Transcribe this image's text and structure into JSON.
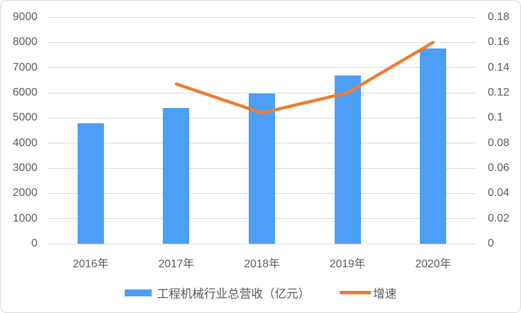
{
  "chart_data": {
    "type": "combo",
    "title": "",
    "categories": [
      "2016年",
      "2017年",
      "2018年",
      "2019年",
      "2020年"
    ],
    "series": [
      {
        "name": "工程机械行业总营收（亿元）",
        "type": "bar",
        "axis": "left",
        "color": "#4D9EF7",
        "values": [
          4795,
          5403,
          5966,
          6681,
          7751
        ]
      },
      {
        "name": "增速",
        "type": "line",
        "axis": "right",
        "color": "#ED7D31",
        "values": [
          null,
          0.127,
          0.104,
          0.12,
          0.16
        ]
      }
    ],
    "left_axis": {
      "min": 0,
      "max": 9000,
      "step": 1000,
      "tick_labels": [
        "0",
        "1000",
        "2000",
        "3000",
        "4000",
        "5000",
        "6000",
        "7000",
        "8000",
        "9000"
      ]
    },
    "right_axis": {
      "min": 0,
      "max": 0.18,
      "step": 0.02,
      "tick_labels": [
        "0",
        "0.02",
        "0.04",
        "0.06",
        "0.08",
        "0.1",
        "0.12",
        "0.14",
        "0.16",
        "0.18"
      ]
    },
    "grid": true,
    "legend_position": "bottom"
  },
  "style": {
    "bar_color": "#4D9EF7",
    "line_color": "#ED7D31",
    "text_color": "#595959",
    "gridline_color": "#D9D9D9",
    "border_color": "#D8D8D8",
    "background": "#FFFFFF"
  }
}
